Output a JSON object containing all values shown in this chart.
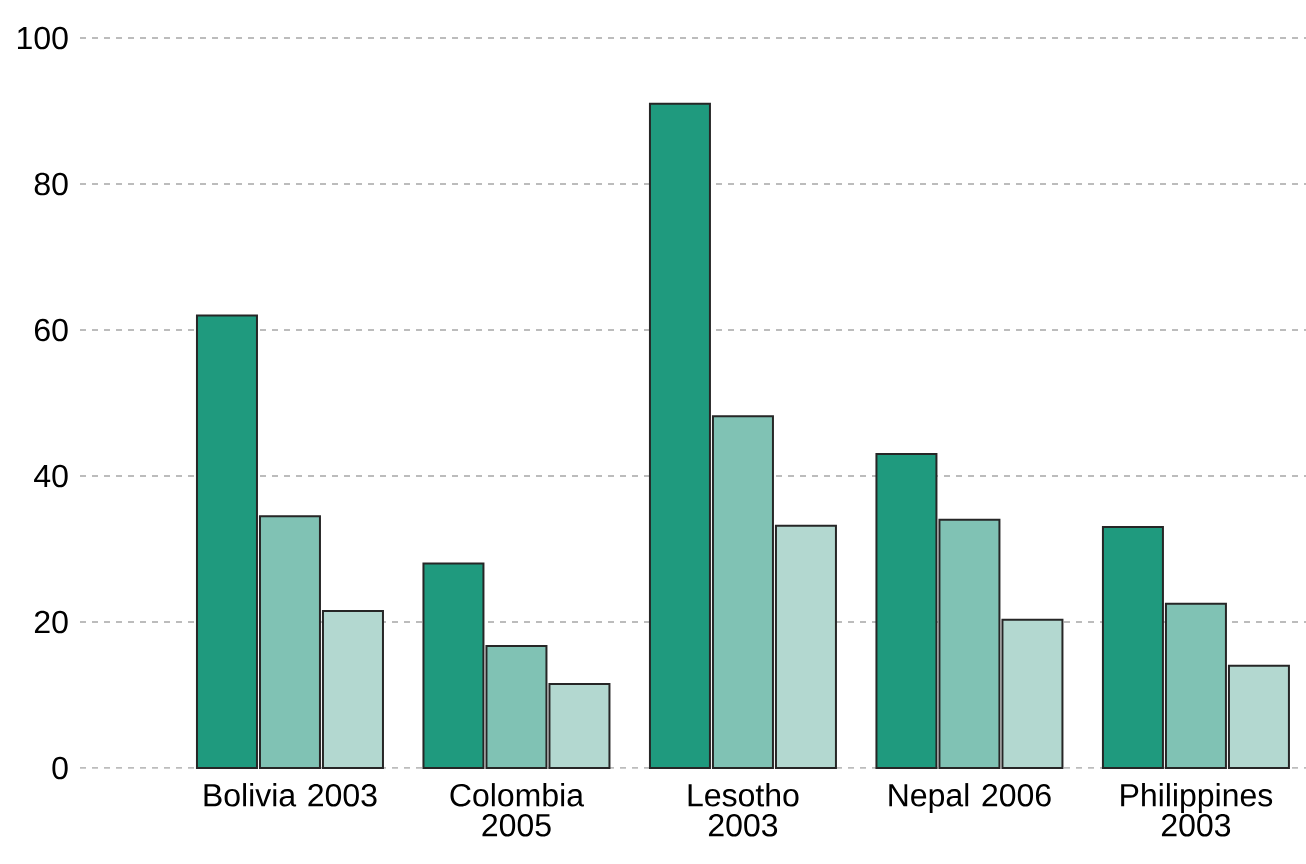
{
  "chart_data": {
    "type": "bar",
    "categories": [
      "Bolivia 2003",
      "Colombia 2005",
      "Lesotho 2003",
      "Nepal 2006",
      "Philippines 2003"
    ],
    "series": [
      {
        "color": "#1f9a7e",
        "values": [
          62,
          28,
          91,
          43,
          33
        ]
      },
      {
        "color": "#80c2b4",
        "values": [
          34.5,
          16.7,
          48.2,
          34,
          22.5
        ]
      },
      {
        "color": "#b3d8d0",
        "values": [
          21.5,
          11.5,
          33.2,
          20.3,
          14
        ]
      }
    ],
    "ylim": [
      0,
      100
    ],
    "yticks": [
      0,
      20,
      40,
      60,
      80,
      100
    ],
    "grid": "y"
  }
}
